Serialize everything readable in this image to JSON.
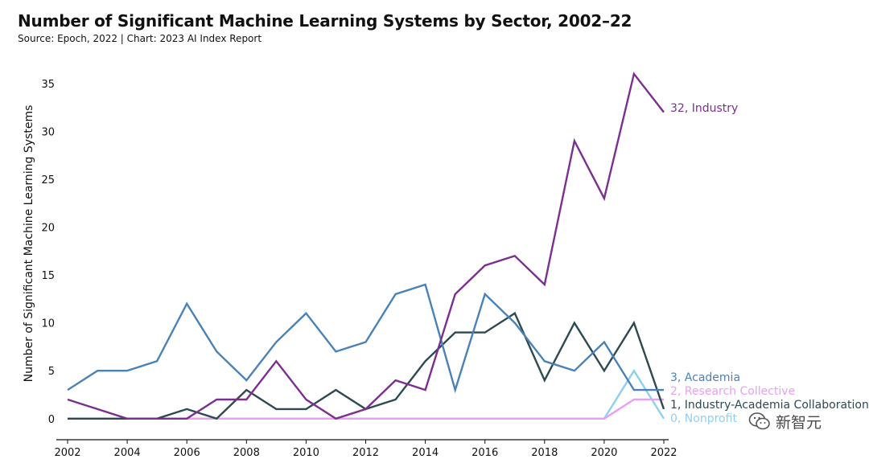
{
  "title": "Number of Significant Machine Learning Systems by Sector, 2002–22",
  "source": "Source: Epoch, 2022 | Chart: 2023 AI Index Report",
  "watermark": "新智元",
  "chart_data": {
    "type": "line",
    "title": "Number of Significant Machine Learning Systems by Sector, 2002–22",
    "ylabel": "Number of Significant Machine Learning Systems",
    "xlabel": "",
    "x": [
      2002,
      2003,
      2004,
      2005,
      2006,
      2007,
      2008,
      2009,
      2010,
      2011,
      2012,
      2013,
      2014,
      2015,
      2016,
      2017,
      2018,
      2019,
      2020,
      2021,
      2022
    ],
    "xticks": [
      "2002",
      "2004",
      "2006",
      "2008",
      "2010",
      "2012",
      "2014",
      "2016",
      "2018",
      "2020",
      "2022"
    ],
    "yticks": [
      "0",
      "5",
      "10",
      "15",
      "20",
      "25",
      "30",
      "35"
    ],
    "xlim": [
      2002,
      2022
    ],
    "ylim": [
      -2.2,
      37
    ],
    "grid": false,
    "legend": "end-of-line labels",
    "series": [
      {
        "name": "Industry",
        "end_label": "32, Industry",
        "color": "#7b2f8e",
        "values": [
          2,
          1,
          0,
          0,
          0,
          2,
          2,
          6,
          2,
          0,
          1,
          4,
          3,
          13,
          16,
          17,
          14,
          29,
          23,
          36,
          32
        ]
      },
      {
        "name": "Academia",
        "end_label": "3, Academia",
        "color": "#4a82b8",
        "values": [
          3,
          5,
          5,
          6,
          12,
          7,
          4,
          8,
          11,
          7,
          8,
          13,
          14,
          3,
          13,
          10,
          6,
          5,
          8,
          3,
          3
        ]
      },
      {
        "name": "Research Collective",
        "end_label": "2, Research Collective",
        "color": "#e8a0f0",
        "values": [
          0,
          0,
          0,
          0,
          0,
          0,
          0,
          0,
          0,
          0,
          0,
          0,
          0,
          0,
          0,
          0,
          0,
          0,
          0,
          2,
          2
        ]
      },
      {
        "name": "Industry-Academia Collaboration",
        "end_label": "1, Industry-Academia Collaboration",
        "color": "#2d4a52",
        "values": [
          0,
          0,
          0,
          0,
          1,
          0,
          3,
          1,
          1,
          3,
          1,
          2,
          6,
          9,
          9,
          11,
          4,
          10,
          5,
          10,
          1
        ]
      },
      {
        "name": "Nonprofit",
        "end_label": "0, Nonprofit",
        "color": "#8fd0f0",
        "values": [
          0,
          0,
          0,
          0,
          0,
          0,
          0,
          0,
          0,
          0,
          0,
          0,
          0,
          0,
          0,
          0,
          0,
          0,
          0,
          5,
          0
        ]
      }
    ]
  }
}
